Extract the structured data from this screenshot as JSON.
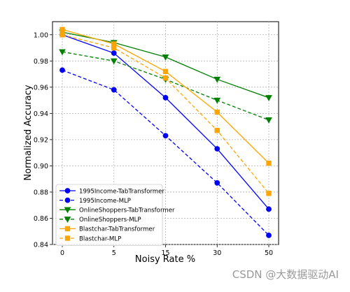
{
  "chart_data": {
    "type": "line",
    "title": "",
    "xlabel": "Noisy Rate %",
    "ylabel": "Normalized Accuracy",
    "categories": [
      "0",
      "5",
      "15",
      "30",
      "50"
    ],
    "ylim": [
      0.84,
      1.01
    ],
    "yticks": [
      "0.84",
      "0.86",
      "0.88",
      "0.90",
      "0.92",
      "0.94",
      "0.96",
      "0.98",
      "1.00"
    ],
    "grid": true,
    "legend_position": "lower-left",
    "series": [
      {
        "name": "1995Income-TabTransformer",
        "values": [
          1.0,
          0.986,
          0.952,
          0.913,
          0.867
        ],
        "color": "#0000ff",
        "dash": "solid",
        "marker": "circle"
      },
      {
        "name": "1995Income-MLP",
        "values": [
          0.973,
          0.958,
          0.923,
          0.887,
          0.847
        ],
        "color": "#0000ff",
        "dash": "dashed",
        "marker": "circle"
      },
      {
        "name": "OnlineShoppers-TabTransformer",
        "values": [
          1.002,
          0.994,
          0.983,
          0.966,
          0.952
        ],
        "color": "#008000",
        "dash": "solid",
        "marker": "triangle-down"
      },
      {
        "name": "OnlineShoppers-MLP",
        "values": [
          0.987,
          0.98,
          0.966,
          0.95,
          0.935
        ],
        "color": "#008000",
        "dash": "dashed",
        "marker": "triangle-down"
      },
      {
        "name": "Blastchar-TabTransformer",
        "values": [
          1.004,
          0.993,
          0.972,
          0.941,
          0.902
        ],
        "color": "#ffa500",
        "dash": "solid",
        "marker": "square"
      },
      {
        "name": "Blastchar-MLP",
        "values": [
          1.0,
          0.99,
          0.967,
          0.927,
          0.879
        ],
        "color": "#ffa500",
        "dash": "dashed",
        "marker": "square"
      }
    ]
  },
  "watermark": "CSDN @大数据驱动AI"
}
